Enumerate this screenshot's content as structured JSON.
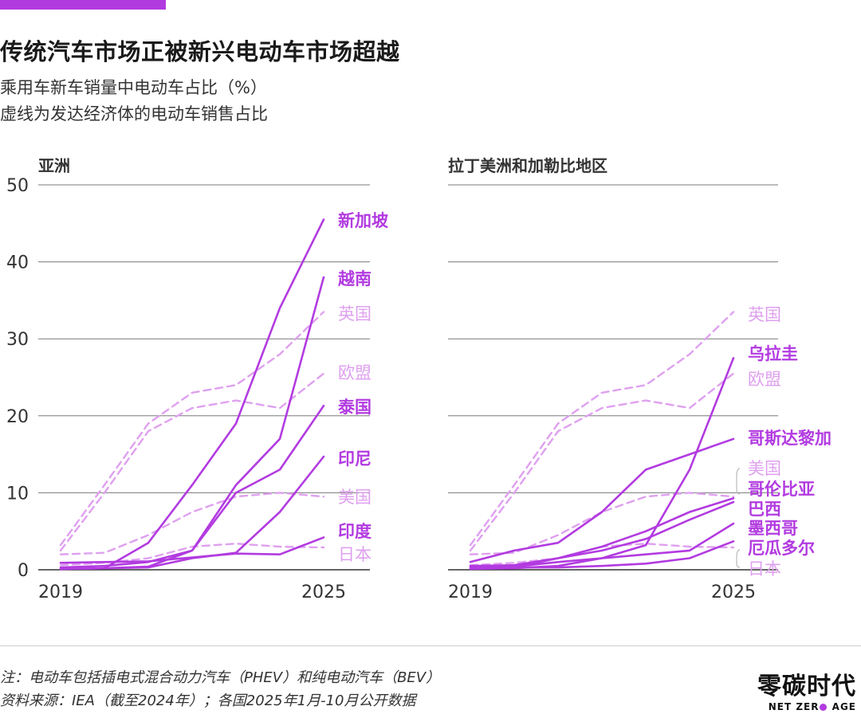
{
  "header": {
    "title": "传统汽车市场正被新兴电动车市场超越",
    "subtitle": "乘用车新车销量中电动车占比（%）",
    "dash_note": "虚线为发达经济体的电动车销售占比"
  },
  "colors": {
    "accent": "#b23be0",
    "dashed": "#dfa0ef",
    "grid": "#4d4d4d"
  },
  "chart_data": [
    {
      "type": "line",
      "title": "亚洲",
      "xlabels": [
        "2019",
        "2025"
      ],
      "xlim": [
        2019,
        2025
      ],
      "ylim": [
        0,
        50
      ],
      "yticks": [
        0,
        10,
        20,
        30,
        40,
        50
      ],
      "series": [
        {
          "name": "新加坡",
          "style": "solid",
          "x": [
            2019,
            2020,
            2021,
            2022,
            2023,
            2024,
            2025
          ],
          "y": [
            0.1,
            0.2,
            3.5,
            11,
            19,
            34,
            45.5
          ]
        },
        {
          "name": "越南",
          "style": "solid",
          "x": [
            2019,
            2020,
            2021,
            2022,
            2023,
            2024,
            2025
          ],
          "y": [
            0.1,
            0.2,
            0.4,
            2.5,
            11,
            17,
            38
          ]
        },
        {
          "name": "英国",
          "style": "dashed",
          "x": [
            2019,
            2020,
            2021,
            2022,
            2023,
            2024,
            2025
          ],
          "y": [
            3.2,
            11,
            19,
            23,
            24,
            28,
            33.5
          ]
        },
        {
          "name": "欧盟",
          "style": "dashed",
          "x": [
            2019,
            2020,
            2021,
            2022,
            2023,
            2024,
            2025
          ],
          "y": [
            2.5,
            10,
            18,
            21,
            22,
            21,
            25.5
          ]
        },
        {
          "name": "泰国",
          "style": "solid",
          "x": [
            2019,
            2020,
            2021,
            2022,
            2023,
            2024,
            2025
          ],
          "y": [
            0.3,
            0.5,
            1.0,
            2.5,
            10,
            13,
            21.3
          ]
        },
        {
          "name": "印尼",
          "style": "solid",
          "x": [
            2019,
            2020,
            2021,
            2022,
            2023,
            2024,
            2025
          ],
          "y": [
            0.1,
            0.2,
            0.3,
            1.5,
            2.2,
            7.5,
            14.7
          ]
        },
        {
          "name": "美国",
          "style": "dashed",
          "x": [
            2019,
            2020,
            2021,
            2022,
            2023,
            2024,
            2025
          ],
          "y": [
            2.0,
            2.2,
            4.5,
            7.5,
            9.5,
            10,
            9.5
          ]
        },
        {
          "name": "印度",
          "style": "solid",
          "x": [
            2019,
            2020,
            2021,
            2022,
            2023,
            2024,
            2025
          ],
          "y": [
            0.9,
            1.0,
            1.1,
            1.6,
            2.1,
            2.0,
            4.2
          ]
        },
        {
          "name": "日本",
          "style": "dashed",
          "x": [
            2019,
            2020,
            2021,
            2022,
            2023,
            2024,
            2025
          ],
          "y": [
            0.6,
            0.9,
            1.5,
            3.0,
            3.4,
            3.0,
            2.9
          ]
        }
      ]
    },
    {
      "type": "line",
      "title": "拉丁美洲和加勒比地区",
      "xlabels": [
        "2019",
        "2025"
      ],
      "xlim": [
        2019,
        2025
      ],
      "ylim": [
        0,
        50
      ],
      "yticks": [
        0,
        10,
        20,
        30,
        40,
        50
      ],
      "series": [
        {
          "name": "英国",
          "style": "dashed",
          "x": [
            2019,
            2020,
            2021,
            2022,
            2023,
            2024,
            2025
          ],
          "y": [
            3.2,
            11,
            19,
            23,
            24,
            28,
            33.5
          ]
        },
        {
          "name": "乌拉圭",
          "style": "solid",
          "x": [
            2019,
            2020,
            2021,
            2022,
            2023,
            2024,
            2025
          ],
          "y": [
            0.1,
            0.2,
            0.5,
            1.5,
            3.2,
            13,
            27.5
          ]
        },
        {
          "name": "欧盟",
          "style": "dashed",
          "x": [
            2019,
            2020,
            2021,
            2022,
            2023,
            2024,
            2025
          ],
          "y": [
            2.5,
            10,
            18,
            21,
            22,
            21,
            25.5
          ]
        },
        {
          "name": "哥斯达黎加",
          "style": "solid",
          "x": [
            2019,
            2020,
            2021,
            2022,
            2023,
            2024,
            2025
          ],
          "y": [
            1.0,
            2.5,
            3.5,
            7.5,
            13,
            15,
            17
          ]
        },
        {
          "name": "美国",
          "style": "dashed",
          "x": [
            2019,
            2020,
            2021,
            2022,
            2023,
            2024,
            2025
          ],
          "y": [
            2.0,
            2.2,
            4.5,
            7.5,
            9.5,
            10,
            9.5
          ]
        },
        {
          "name": "哥伦比亚",
          "style": "solid",
          "x": [
            2019,
            2020,
            2021,
            2022,
            2023,
            2024,
            2025
          ],
          "y": [
            0.5,
            0.6,
            1.5,
            3.0,
            5.0,
            7.5,
            9.3
          ]
        },
        {
          "name": "巴西",
          "style": "solid",
          "x": [
            2019,
            2020,
            2021,
            2022,
            2023,
            2024,
            2025
          ],
          "y": [
            0.2,
            0.3,
            1.5,
            2.5,
            4.0,
            6.5,
            8.8
          ]
        },
        {
          "name": "墨西哥",
          "style": "solid",
          "x": [
            2019,
            2020,
            2021,
            2022,
            2023,
            2024,
            2025
          ],
          "y": [
            0.3,
            0.4,
            1.0,
            1.5,
            2.0,
            2.5,
            6.0
          ]
        },
        {
          "name": "厄瓜多尔",
          "style": "solid",
          "x": [
            2020.2,
            2021,
            2022,
            2023,
            2024,
            2025
          ],
          "y": [
            0.3,
            0.3,
            0.5,
            0.8,
            1.5,
            3.7
          ]
        },
        {
          "name": "日本",
          "style": "dashed",
          "x": [
            2019,
            2020,
            2021,
            2022,
            2023,
            2024,
            2025
          ],
          "y": [
            0.6,
            0.9,
            1.5,
            3.0,
            3.4,
            3.0,
            2.9
          ]
        }
      ]
    }
  ],
  "footer": {
    "note": "注：电动车包括插电式混合动力汽车（PHEV）和纯电动汽车（BEV）",
    "source": "资料来源：IEA（截至2024年）；各国2025年1月-10月公开数据",
    "logo_cn": "零碳时代",
    "logo_en_left": "NET ZER",
    "logo_en_right": " AGE"
  }
}
